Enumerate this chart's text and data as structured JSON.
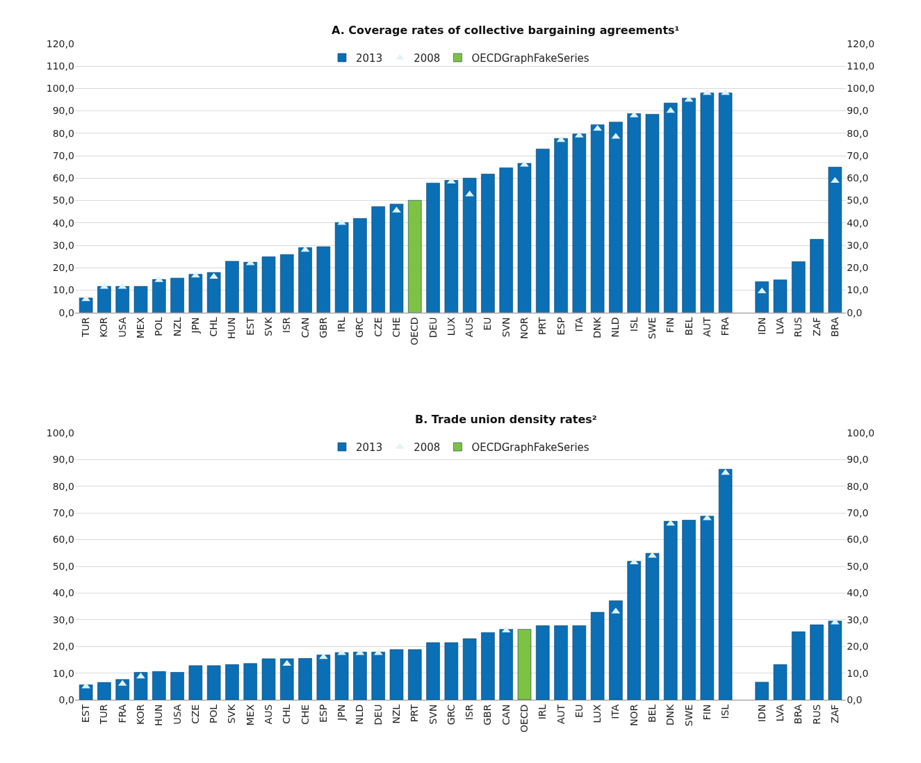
{
  "chart_data": [
    {
      "type": "bar",
      "title": "A. Coverage rates of collective bargaining agreements¹",
      "categories": [
        "TUR",
        "KOR",
        "USA",
        "MEX",
        "POL",
        "NZL",
        "JPN",
        "CHL",
        "HUN",
        "EST",
        "SVK",
        "ISR",
        "CAN",
        "GBR",
        "IRL",
        "GRC",
        "CZE",
        "CHE",
        "OECD",
        "DEU",
        "LUX",
        "AUS",
        "EU",
        "SVN",
        "NOR",
        "PRT",
        "ESP",
        "ITA",
        "DNK",
        "NLD",
        "ISL",
        "SWE",
        "FIN",
        "BEL",
        "AUT",
        "FRA",
        null,
        "IDN",
        "LVA",
        "RUS",
        "ZAF",
        "BRA"
      ],
      "series": [
        {
          "name": "2013",
          "color": "#0a6fb5",
          "values": [
            6.5,
            11.7,
            11.7,
            11.7,
            14.8,
            15.4,
            17.1,
            17.9,
            22.9,
            22.5,
            24.9,
            25.9,
            29,
            29.4,
            40.2,
            42,
            47.3,
            48.4,
            null,
            57.8,
            59,
            60,
            61.8,
            64.6,
            66.6,
            73,
            77.7,
            79.7,
            83.8,
            85,
            88.8,
            88.5,
            93.5,
            95.7,
            98,
            98,
            null,
            13.8,
            14.6,
            22.7,
            32.7,
            64.9
          ]
        },
        {
          "name": "2008",
          "type": "scatter",
          "marker": "triangle",
          "color": "#dff3fb",
          "values": [
            6,
            11.5,
            11.5,
            null,
            14.5,
            null,
            16.5,
            16,
            null,
            22,
            null,
            null,
            28,
            null,
            40,
            null,
            null,
            45.5,
            null,
            null,
            58.5,
            52.7,
            null,
            null,
            66,
            null,
            77,
            79,
            82,
            78.5,
            88,
            null,
            90,
            95,
            98,
            98,
            null,
            9.5,
            null,
            null,
            null,
            58.8
          ]
        },
        {
          "name": "OECDGraphFakeSeries",
          "color": "#7dc242",
          "values": [
            null,
            null,
            null,
            null,
            null,
            null,
            null,
            null,
            null,
            null,
            null,
            null,
            null,
            null,
            null,
            null,
            null,
            null,
            50.1,
            null,
            null,
            null,
            null,
            null,
            null,
            null,
            null,
            null,
            null,
            null,
            null,
            null,
            null,
            null,
            null,
            null,
            null,
            null,
            null,
            null,
            null,
            null
          ]
        }
      ],
      "ylim": [
        0,
        120
      ],
      "yticks": [
        {
          "value": 0,
          "label": "0,0"
        },
        {
          "value": 10,
          "label": "10,0"
        },
        {
          "value": 20,
          "label": "20,0"
        },
        {
          "value": 30,
          "label": "30,0"
        },
        {
          "value": 40,
          "label": "40,0"
        },
        {
          "value": 50,
          "label": "50,0"
        },
        {
          "value": 60,
          "label": "60,0"
        },
        {
          "value": 70,
          "label": "70,0"
        },
        {
          "value": 80,
          "label": "80,0"
        },
        {
          "value": 90,
          "label": "90,0"
        },
        {
          "value": 100,
          "label": "100,0"
        },
        {
          "value": 110,
          "label": "110,0"
        },
        {
          "value": 120,
          "label": "120,0"
        }
      ],
      "y2lim": [
        0,
        120
      ],
      "y2ticks": [
        {
          "value": 0,
          "label": "0,0"
        },
        {
          "value": 10,
          "label": "10,0"
        },
        {
          "value": 20,
          "label": "20,0"
        },
        {
          "value": 30,
          "label": "30,0"
        },
        {
          "value": 40,
          "label": "40,0"
        },
        {
          "value": 50,
          "label": "50,0"
        },
        {
          "value": 60,
          "label": "60,0"
        },
        {
          "value": 70,
          "label": "70,0"
        },
        {
          "value": 80,
          "label": "80,0"
        },
        {
          "value": 90,
          "label": "90,0"
        },
        {
          "value": 100,
          "label": "100,0"
        },
        {
          "value": 110,
          "label": "110,0"
        },
        {
          "value": 120,
          "label": "120,0"
        }
      ],
      "grid": "y",
      "legend": "top"
    },
    {
      "type": "bar",
      "title": "B. Trade union density rates²",
      "categories": [
        "EST",
        "TUR",
        "FRA",
        "KOR",
        "HUN",
        "USA",
        "CZE",
        "POL",
        "SVK",
        "MEX",
        "AUS",
        "CHL",
        "CHE",
        "ESP",
        "JPN",
        "NLD",
        "DEU",
        "NZL",
        "PRT",
        "SVN",
        "GRC",
        "ISR",
        "GBR",
        "CAN",
        "OECD",
        "IRL",
        "AUT",
        "EU",
        "LUX",
        "ITA",
        "NOR",
        "BEL",
        "DNK",
        "SWE",
        "FIN",
        "ISL",
        null,
        "IDN",
        "LVA",
        "BRA",
        "RUS",
        "ZAF"
      ],
      "series": [
        {
          "name": "2013",
          "color": "#0a6fb5",
          "values": [
            5.6,
            6.5,
            7.6,
            10.3,
            10.6,
            10.3,
            12.8,
            12.8,
            13.2,
            13.6,
            15.4,
            15.4,
            15.5,
            16.8,
            17.7,
            17.9,
            17.9,
            18.8,
            18.8,
            21.4,
            21.4,
            22.9,
            25.2,
            26.4,
            null,
            27.8,
            27.8,
            27.8,
            32.8,
            37.1,
            51.9,
            54.9,
            66.9,
            67.3,
            68.8,
            86.4,
            null,
            6.6,
            13.2,
            25.5,
            28.1,
            29.5
          ]
        },
        {
          "name": "2008",
          "type": "scatter",
          "marker": "triangle",
          "color": "#dff3fb",
          "values": [
            5,
            null,
            6,
            8.7,
            null,
            null,
            null,
            null,
            null,
            null,
            null,
            13.5,
            null,
            16,
            17.5,
            17.5,
            17.5,
            null,
            null,
            null,
            null,
            null,
            null,
            26,
            null,
            null,
            null,
            null,
            null,
            33.1,
            51.5,
            54,
            66,
            null,
            68,
            85,
            null,
            null,
            null,
            null,
            null,
            29
          ]
        },
        {
          "name": "OECDGraphFakeSeries",
          "color": "#7dc242",
          "values": [
            null,
            null,
            null,
            null,
            null,
            null,
            null,
            null,
            null,
            null,
            null,
            null,
            null,
            null,
            null,
            null,
            null,
            null,
            null,
            null,
            null,
            null,
            null,
            null,
            26.4,
            null,
            null,
            null,
            null,
            null,
            null,
            null,
            null,
            null,
            null,
            null,
            null,
            null,
            null,
            null,
            null,
            null
          ]
        }
      ],
      "ylim": [
        0,
        100
      ],
      "yticks": [
        {
          "value": 0,
          "label": "0,0"
        },
        {
          "value": 10,
          "label": "10,0"
        },
        {
          "value": 20,
          "label": "20,0"
        },
        {
          "value": 30,
          "label": "30,0"
        },
        {
          "value": 40,
          "label": "40,0"
        },
        {
          "value": 50,
          "label": "50,0"
        },
        {
          "value": 60,
          "label": "60,0"
        },
        {
          "value": 70,
          "label": "70,0"
        },
        {
          "value": 80,
          "label": "80,0"
        },
        {
          "value": 90,
          "label": "90,0"
        },
        {
          "value": 100,
          "label": "100,0"
        }
      ],
      "y2lim": [
        0,
        100
      ],
      "y2ticks": [
        {
          "value": 0,
          "label": "0,0"
        },
        {
          "value": 10,
          "label": "10,0"
        },
        {
          "value": 20,
          "label": "20,0"
        },
        {
          "value": 30,
          "label": "30,0"
        },
        {
          "value": 40,
          "label": "40,0"
        },
        {
          "value": 50,
          "label": "50,0"
        },
        {
          "value": 60,
          "label": "60,0"
        },
        {
          "value": 70,
          "label": "70,0"
        },
        {
          "value": 80,
          "label": "80,0"
        },
        {
          "value": 90,
          "label": "90,0"
        },
        {
          "value": 100,
          "label": "100,0"
        }
      ],
      "grid": "y",
      "legend": "top"
    }
  ]
}
